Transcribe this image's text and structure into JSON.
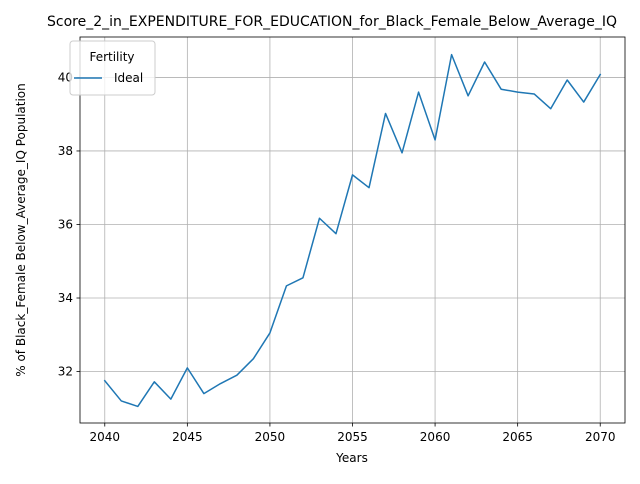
{
  "chart_data": {
    "type": "line",
    "title": "Score_2_in_EXPENDITURE_FOR_EDUCATION_for_Black_Female_Below_Average_IQ",
    "xlabel": "Years",
    "ylabel": "% of Black_Female Below_Average_IQ Population",
    "xlim": [
      2038.5,
      2071.5
    ],
    "ylim": [
      30.6,
      41.1
    ],
    "xticks": [
      2040,
      2045,
      2050,
      2055,
      2060,
      2065,
      2070
    ],
    "yticks": [
      32,
      34,
      36,
      38,
      40
    ],
    "grid": true,
    "legend": {
      "title": "Fertility",
      "position": "top-left"
    },
    "x": [
      2040,
      2041,
      2042,
      2043,
      2044,
      2045,
      2046,
      2047,
      2048,
      2049,
      2050,
      2051,
      2052,
      2053,
      2054,
      2055,
      2056,
      2057,
      2058,
      2059,
      2060,
      2061,
      2062,
      2063,
      2064,
      2065,
      2066,
      2067,
      2068,
      2069,
      2070
    ],
    "series": [
      {
        "name": "Ideal",
        "color": "#1f77b4",
        "values": [
          31.75,
          31.2,
          31.05,
          31.72,
          31.25,
          32.1,
          31.4,
          31.67,
          31.9,
          32.35,
          33.05,
          34.33,
          34.55,
          36.17,
          35.75,
          37.35,
          37.0,
          39.02,
          37.95,
          39.6,
          38.3,
          40.62,
          39.5,
          40.42,
          39.68,
          39.6,
          39.55,
          39.15,
          39.93,
          39.33,
          40.08
        ]
      }
    ]
  }
}
